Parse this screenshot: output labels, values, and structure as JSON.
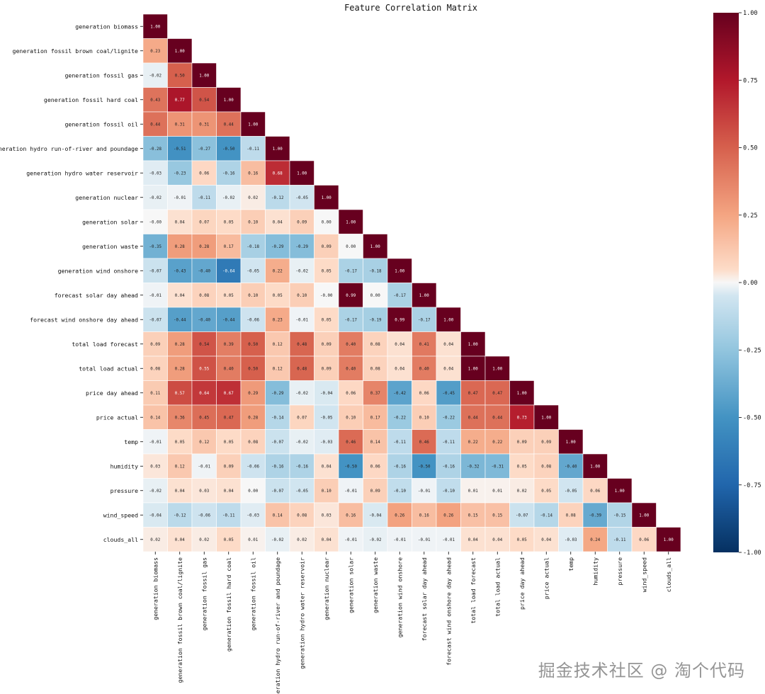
{
  "chart_data": {
    "type": "heatmap",
    "title": "Feature Correlation Matrix",
    "labels": [
      "generation biomass",
      "generation fossil brown coal/lignite",
      "generation fossil gas",
      "generation fossil hard coal",
      "generation fossil oil",
      "generation hydro run-of-river and poundage",
      "generation hydro water reservoir",
      "generation nuclear",
      "generation solar",
      "generation waste",
      "generation wind onshore",
      "forecast solar day ahead",
      "forecast wind onshore day ahead",
      "total load forecast",
      "total load actual",
      "price day ahead",
      "price actual",
      "temp",
      "humidity",
      "pressure",
      "wind_speed",
      "clouds_all"
    ],
    "matrix": [
      [
        1.0
      ],
      [
        0.23,
        1.0
      ],
      [
        -0.02,
        0.5,
        1.0
      ],
      [
        0.43,
        0.77,
        0.54,
        1.0
      ],
      [
        0.44,
        0.31,
        0.31,
        0.44,
        1.0
      ],
      [
        -0.28,
        -0.51,
        -0.27,
        -0.5,
        -0.11,
        1.0
      ],
      [
        -0.03,
        -0.23,
        0.06,
        -0.16,
        0.16,
        0.68,
        1.0
      ],
      [
        -0.02,
        -0.01,
        -0.11,
        -0.02,
        0.02,
        -0.12,
        -0.05,
        1.0
      ],
      [
        -0.0,
        0.04,
        0.07,
        0.05,
        0.1,
        0.04,
        0.09,
        0.0,
        1.0
      ],
      [
        -0.35,
        0.28,
        0.28,
        0.17,
        -0.18,
        -0.29,
        -0.29,
        0.09,
        0.0,
        1.0
      ],
      [
        -0.07,
        -0.43,
        -0.4,
        -0.64,
        -0.05,
        0.22,
        -0.02,
        0.05,
        -0.17,
        -0.18,
        1.0
      ],
      [
        -0.01,
        0.04,
        0.08,
        0.05,
        0.1,
        0.05,
        0.1,
        -0.0,
        0.99,
        0.0,
        -0.17,
        1.0
      ],
      [
        -0.07,
        -0.44,
        -0.4,
        -0.44,
        -0.06,
        0.23,
        -0.01,
        0.05,
        -0.17,
        -0.19,
        0.99,
        -0.17,
        1.0
      ],
      [
        0.09,
        0.28,
        0.54,
        0.39,
        0.5,
        0.12,
        0.48,
        0.09,
        0.4,
        0.08,
        0.04,
        0.41,
        0.04,
        1.0
      ],
      [
        0.08,
        0.28,
        0.55,
        0.4,
        0.5,
        0.12,
        0.48,
        0.09,
        0.4,
        0.08,
        0.04,
        0.4,
        0.04,
        1.0,
        1.0
      ],
      [
        0.11,
        0.57,
        0.64,
        0.67,
        0.29,
        -0.29,
        -0.02,
        -0.04,
        0.06,
        0.37,
        -0.42,
        0.06,
        -0.45,
        0.47,
        0.47,
        1.0
      ],
      [
        0.14,
        0.36,
        0.45,
        0.47,
        0.28,
        -0.14,
        0.07,
        -0.05,
        0.1,
        0.17,
        -0.22,
        0.1,
        -0.22,
        0.44,
        0.44,
        0.73,
        1.0
      ],
      [
        -0.01,
        0.05,
        0.12,
        0.05,
        0.08,
        -0.07,
        -0.02,
        -0.03,
        0.46,
        0.14,
        -0.11,
        0.46,
        -0.11,
        0.22,
        0.22,
        0.09,
        0.09,
        1.0
      ],
      [
        0.03,
        0.12,
        -0.01,
        0.09,
        -0.06,
        -0.16,
        -0.16,
        0.04,
        -0.5,
        0.06,
        -0.16,
        -0.5,
        -0.16,
        -0.32,
        -0.31,
        0.05,
        0.08,
        -0.4,
        1.0
      ],
      [
        -0.02,
        0.04,
        0.03,
        0.04,
        0.0,
        -0.07,
        -0.05,
        0.1,
        -0.01,
        0.09,
        -0.1,
        -0.01,
        -0.1,
        0.01,
        0.01,
        0.02,
        0.05,
        -0.05,
        0.06,
        1.0
      ],
      [
        -0.04,
        -0.12,
        -0.06,
        -0.11,
        -0.03,
        0.14,
        0.08,
        0.03,
        0.16,
        -0.04,
        0.26,
        0.16,
        0.26,
        0.15,
        0.15,
        -0.07,
        -0.14,
        0.08,
        -0.39,
        -0.15,
        1.0
      ],
      [
        0.02,
        0.04,
        0.02,
        0.05,
        0.01,
        -0.02,
        0.02,
        0.04,
        -0.01,
        -0.02,
        -0.01,
        -0.01,
        -0.01,
        0.04,
        0.04,
        0.05,
        0.04,
        -0.03,
        0.24,
        -0.11,
        0.06,
        1.0
      ]
    ],
    "colorbar": {
      "range": [
        -1.0,
        1.0
      ],
      "ticks": [
        "1.00",
        "0.75",
        "0.50",
        "0.25",
        "0.00",
        "-0.25",
        "-0.50",
        "-0.75",
        "-1.00"
      ],
      "colormap": "RdBu_r"
    },
    "mask": "upper-triangle"
  },
  "watermark": "掘金技术社区 @ 淘个代码"
}
